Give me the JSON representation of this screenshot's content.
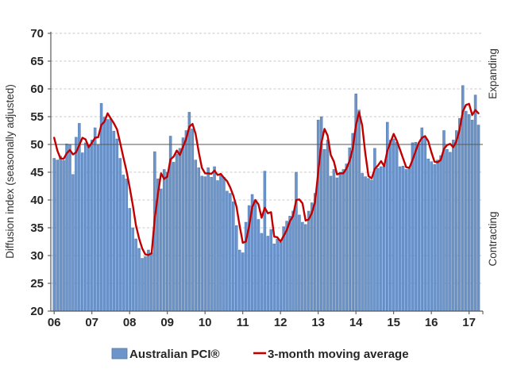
{
  "chart_data": {
    "type": "bar",
    "title": "",
    "ylabel": "Diffusion index (seasonally adjusted)",
    "ylim": [
      20,
      70
    ],
    "y_ticks": [
      20,
      25,
      30,
      35,
      40,
      45,
      50,
      55,
      60,
      65,
      70
    ],
    "x_tick_labels": [
      "06",
      "07",
      "08",
      "09",
      "10",
      "11",
      "12",
      "13",
      "14",
      "15",
      "16",
      "17"
    ],
    "x_start_month": "2006-01",
    "months_per_tick": 12,
    "grid": "dashed-horizontal",
    "legend_position": "bottom",
    "reference_line": {
      "value": 50,
      "above_label": "Expanding",
      "below_label": "Contracting"
    },
    "colors": {
      "bar_fill": "#6e95ca",
      "bar_stroke": "#4a77b0",
      "line": "#c00000",
      "gridline": "#c9c9c9",
      "axis": "#595959",
      "reference": "#595959",
      "text": "#262626"
    },
    "series": [
      {
        "name": "Australian PCI®",
        "type": "bar",
        "color": "#6e95ca",
        "values": [
          47.5,
          47.2,
          47.9,
          47.1,
          50.1,
          49.9,
          44.6,
          51.3,
          53.8,
          48.5,
          50.3,
          49.8,
          50.8,
          53.0,
          50.0,
          57.4,
          54.9,
          54.5,
          54.6,
          52.4,
          51.0,
          47.5,
          44.5,
          43.8,
          38.5,
          35.0,
          33.0,
          31.3,
          29.5,
          29.8,
          31.0,
          30.5,
          48.7,
          43.8,
          42.0,
          45.5,
          45.0,
          51.5,
          46.8,
          48.3,
          49.3,
          51.2,
          52.5,
          55.8,
          52.8,
          47.2,
          45.8,
          44.3,
          44.2,
          45.8,
          44.1,
          46.0,
          43.5,
          44.5,
          44.1,
          41.6,
          41.2,
          39.7,
          35.4,
          31.0,
          30.5,
          36.0,
          39.0,
          41.0,
          40.0,
          36.5,
          34.0,
          45.2,
          33.5,
          34.7,
          32.1,
          33.0,
          32.4,
          35.2,
          36.2,
          37.1,
          38.0,
          45.0,
          37.3,
          36.0,
          35.6,
          38.0,
          39.5,
          41.2,
          54.4,
          55.0,
          49.1,
          50.8,
          44.3,
          45.5,
          44.0,
          45.0,
          45.5,
          46.5,
          49.4,
          52.0,
          59.1,
          56.2,
          44.8,
          44.2,
          43.9,
          43.6,
          49.3,
          45.7,
          46.0,
          46.5,
          54.0,
          50.8,
          51.0,
          50.4,
          46.0,
          46.1,
          45.5,
          45.7,
          50.3,
          50.4,
          50.2,
          53.0,
          51.4,
          47.4,
          46.9,
          46.4,
          47.2,
          48.0,
          52.5,
          49.1,
          48.6,
          50.8,
          52.5,
          54.7,
          60.6,
          56.0,
          55.4,
          54.4,
          58.9,
          53.5
        ]
      },
      {
        "name": "3-month moving average",
        "type": "line",
        "color": "#c00000",
        "values": [
          51.2,
          48.9,
          47.5,
          47.4,
          48.4,
          49.0,
          48.2,
          48.6,
          49.9,
          51.2,
          50.9,
          49.5,
          50.3,
          51.2,
          51.3,
          53.5,
          54.1,
          55.6,
          54.7,
          53.8,
          52.7,
          50.3,
          47.7,
          45.3,
          42.3,
          39.1,
          35.5,
          33.1,
          31.3,
          30.2,
          30.1,
          30.4,
          36.7,
          41.0,
          44.8,
          43.8,
          44.2,
          47.3,
          47.8,
          48.9,
          48.1,
          49.6,
          51.0,
          53.2,
          53.7,
          51.9,
          48.6,
          45.8,
          44.8,
          44.8,
          44.7,
          45.3,
          44.5,
          44.7,
          44.0,
          43.4,
          42.3,
          40.8,
          38.8,
          35.4,
          32.3,
          32.5,
          35.2,
          38.7,
          40.0,
          39.2,
          36.8,
          38.6,
          37.6,
          37.8,
          33.4,
          33.3,
          32.5,
          33.5,
          34.6,
          36.2,
          37.1,
          40.0,
          40.1,
          39.4,
          36.3,
          36.5,
          37.7,
          39.6,
          45.0,
          50.2,
          52.8,
          51.6,
          48.1,
          46.9,
          44.6,
          44.8,
          44.8,
          45.7,
          47.1,
          49.3,
          53.5,
          55.8,
          53.4,
          48.4,
          44.3,
          43.9,
          45.6,
          46.2,
          47.0,
          46.1,
          48.8,
          50.4,
          51.9,
          50.7,
          49.1,
          47.5,
          45.9,
          45.8,
          47.2,
          48.8,
          50.3,
          51.2,
          51.5,
          50.6,
          48.6,
          46.9,
          46.8,
          47.2,
          49.2,
          49.9,
          50.1,
          49.5,
          50.6,
          52.7,
          55.9,
          57.1,
          57.3,
          55.3,
          56.2,
          55.6
        ]
      }
    ]
  },
  "legend": {
    "bar_label": "Australian PCI®",
    "line_label": "3-month moving average"
  },
  "annotations": {
    "expanding": "Expanding",
    "contracting": "Contracting"
  }
}
